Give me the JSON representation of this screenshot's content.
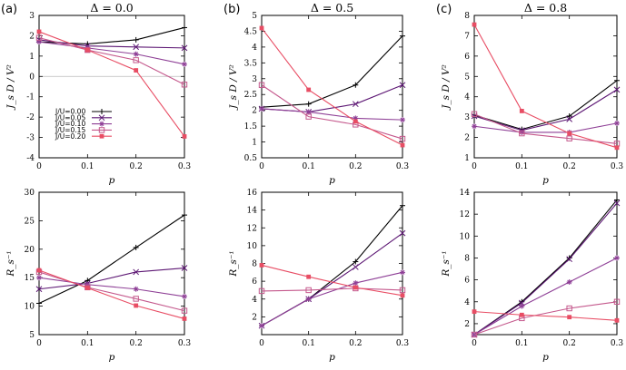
{
  "colors": [
    "#000000",
    "#5c1673",
    "#8e3f96",
    "#c4588c",
    "#e84d64"
  ],
  "legend": [
    "J/U=0.00",
    "J/U=0.05",
    "J/U=0.10",
    "J/U=0.15",
    "J/U=0.20"
  ],
  "markers": [
    "plus",
    "cross",
    "star",
    "square",
    "filled-square"
  ],
  "chart_data": [
    {
      "id": "a-top",
      "type": "line",
      "panel_label": "(a)",
      "title": "Δ = 0.0",
      "xlabel": "p",
      "ylabel": "J_s D / V²",
      "x": [
        0,
        0.1,
        0.2,
        0.3
      ],
      "xlim": [
        0,
        0.3
      ],
      "xticks": [
        "0",
        "0.1",
        "0.2",
        "0.3"
      ],
      "ylim": [
        -4,
        3
      ],
      "yticks": [
        "-4",
        "-3",
        "-2",
        "-1",
        "0",
        "1",
        "2",
        "3"
      ],
      "zero_line": true,
      "series": [
        {
          "name": "J/U=0.00",
          "values": [
            1.7,
            1.6,
            1.8,
            2.4
          ]
        },
        {
          "name": "J/U=0.05",
          "values": [
            1.8,
            1.5,
            1.45,
            1.4
          ]
        },
        {
          "name": "J/U=0.10",
          "values": [
            1.7,
            1.4,
            1.1,
            0.6
          ]
        },
        {
          "name": "J/U=0.15",
          "values": [
            1.9,
            1.3,
            0.8,
            -0.4
          ]
        },
        {
          "name": "J/U=0.20",
          "values": [
            2.2,
            1.3,
            0.3,
            -2.95
          ]
        }
      ]
    },
    {
      "id": "b-top",
      "type": "line",
      "panel_label": "(b)",
      "title": "Δ = 0.5",
      "xlabel": "p",
      "ylabel": "J_s D / V²",
      "x": [
        0,
        0.1,
        0.2,
        0.3
      ],
      "xlim": [
        0,
        0.3
      ],
      "xticks": [
        "0",
        "0.1",
        "0.2",
        "0.3"
      ],
      "ylim": [
        0.5,
        5
      ],
      "yticks": [
        "0.5",
        "1",
        "1.5",
        "2",
        "2.5",
        "3",
        "3.5",
        "4",
        "4.5",
        "5"
      ],
      "series": [
        {
          "name": "J/U=0.00",
          "values": [
            2.1,
            2.2,
            2.8,
            4.35
          ]
        },
        {
          "name": "J/U=0.05",
          "values": [
            2.05,
            1.95,
            2.2,
            2.8
          ]
        },
        {
          "name": "J/U=0.10",
          "values": [
            2.05,
            1.95,
            1.75,
            1.7
          ]
        },
        {
          "name": "J/U=0.15",
          "values": [
            2.8,
            1.8,
            1.55,
            1.1
          ]
        },
        {
          "name": "J/U=0.20",
          "values": [
            4.6,
            2.65,
            1.65,
            0.9
          ]
        }
      ]
    },
    {
      "id": "c-top",
      "type": "line",
      "panel_label": "(c)",
      "title": "Δ = 0.8",
      "xlabel": "p",
      "ylabel": "J_s D / V²",
      "x": [
        0,
        0.1,
        0.2,
        0.3
      ],
      "xlim": [
        0,
        0.3
      ],
      "xticks": [
        "0",
        "0.1",
        "0.2",
        "0.3"
      ],
      "ylim": [
        1,
        8
      ],
      "yticks": [
        "1",
        "2",
        "3",
        "4",
        "5",
        "6",
        "7",
        "8"
      ],
      "series": [
        {
          "name": "J/U=0.00",
          "values": [
            3.1,
            2.4,
            3.05,
            4.8
          ]
        },
        {
          "name": "J/U=0.05",
          "values": [
            3.05,
            2.35,
            2.9,
            4.35
          ]
        },
        {
          "name": "J/U=0.10",
          "values": [
            2.55,
            2.25,
            2.25,
            2.7
          ]
        },
        {
          "name": "J/U=0.15",
          "values": [
            3.15,
            2.2,
            1.95,
            1.7
          ]
        },
        {
          "name": "J/U=0.20",
          "values": [
            7.55,
            3.3,
            2.2,
            1.5
          ]
        }
      ]
    },
    {
      "id": "a-bottom",
      "type": "line",
      "xlabel": "p",
      "ylabel": "R_s⁻¹",
      "x": [
        0,
        0.1,
        0.2,
        0.3
      ],
      "xlim": [
        0,
        0.3
      ],
      "xticks": [
        "0",
        "0.1",
        "0.2",
        "0.3"
      ],
      "ylim": [
        5,
        30
      ],
      "yticks": [
        "5",
        "10",
        "15",
        "20",
        "25",
        "30"
      ],
      "series": [
        {
          "name": "J/U=0.00",
          "values": [
            10.5,
            14.5,
            20.3,
            26.0
          ]
        },
        {
          "name": "J/U=0.05",
          "values": [
            13.0,
            14.0,
            16.0,
            16.7
          ]
        },
        {
          "name": "J/U=0.10",
          "values": [
            15.0,
            13.8,
            13.0,
            11.7
          ]
        },
        {
          "name": "J/U=0.15",
          "values": [
            16.0,
            13.3,
            11.3,
            9.2
          ]
        },
        {
          "name": "J/U=0.20",
          "values": [
            16.3,
            13.2,
            10.1,
            7.8
          ]
        }
      ]
    },
    {
      "id": "b-bottom",
      "type": "line",
      "xlabel": "p",
      "ylabel": "R_s⁻¹",
      "x": [
        0,
        0.1,
        0.2,
        0.3
      ],
      "xlim": [
        0,
        0.3
      ],
      "xticks": [
        "0",
        "0.1",
        "0.2",
        "0.3"
      ],
      "ylim": [
        0,
        16
      ],
      "yticks": [
        "2",
        "4",
        "6",
        "8",
        "10",
        "12",
        "14",
        "16"
      ],
      "series": [
        {
          "name": "J/U=0.00",
          "values": [
            1.0,
            4.0,
            8.2,
            14.5
          ]
        },
        {
          "name": "J/U=0.05",
          "values": [
            1.0,
            4.0,
            7.6,
            11.4
          ]
        },
        {
          "name": "J/U=0.10",
          "values": [
            1.0,
            4.0,
            5.8,
            7.0
          ]
        },
        {
          "name": "J/U=0.15",
          "values": [
            4.9,
            5.0,
            5.2,
            5.0
          ]
        },
        {
          "name": "J/U=0.20",
          "values": [
            7.8,
            6.5,
            5.3,
            4.4
          ]
        }
      ]
    },
    {
      "id": "c-bottom",
      "type": "line",
      "xlabel": "p",
      "ylabel": "R_s⁻¹",
      "x": [
        0,
        0.1,
        0.2,
        0.3
      ],
      "xlim": [
        0,
        0.3
      ],
      "xticks": [
        "0",
        "0.1",
        "0.2",
        "0.3"
      ],
      "ylim": [
        1,
        14
      ],
      "yticks": [
        "2",
        "4",
        "6",
        "8",
        "10",
        "12",
        "14"
      ],
      "series": [
        {
          "name": "J/U=0.00",
          "values": [
            1.0,
            4.0,
            8.0,
            13.3
          ]
        },
        {
          "name": "J/U=0.05",
          "values": [
            1.0,
            3.9,
            7.9,
            13.0
          ]
        },
        {
          "name": "J/U=0.10",
          "values": [
            1.0,
            3.6,
            5.8,
            8.0
          ]
        },
        {
          "name": "J/U=0.15",
          "values": [
            1.0,
            2.5,
            3.4,
            4.0
          ]
        },
        {
          "name": "J/U=0.20",
          "values": [
            3.1,
            2.8,
            2.6,
            2.3
          ]
        }
      ]
    }
  ]
}
